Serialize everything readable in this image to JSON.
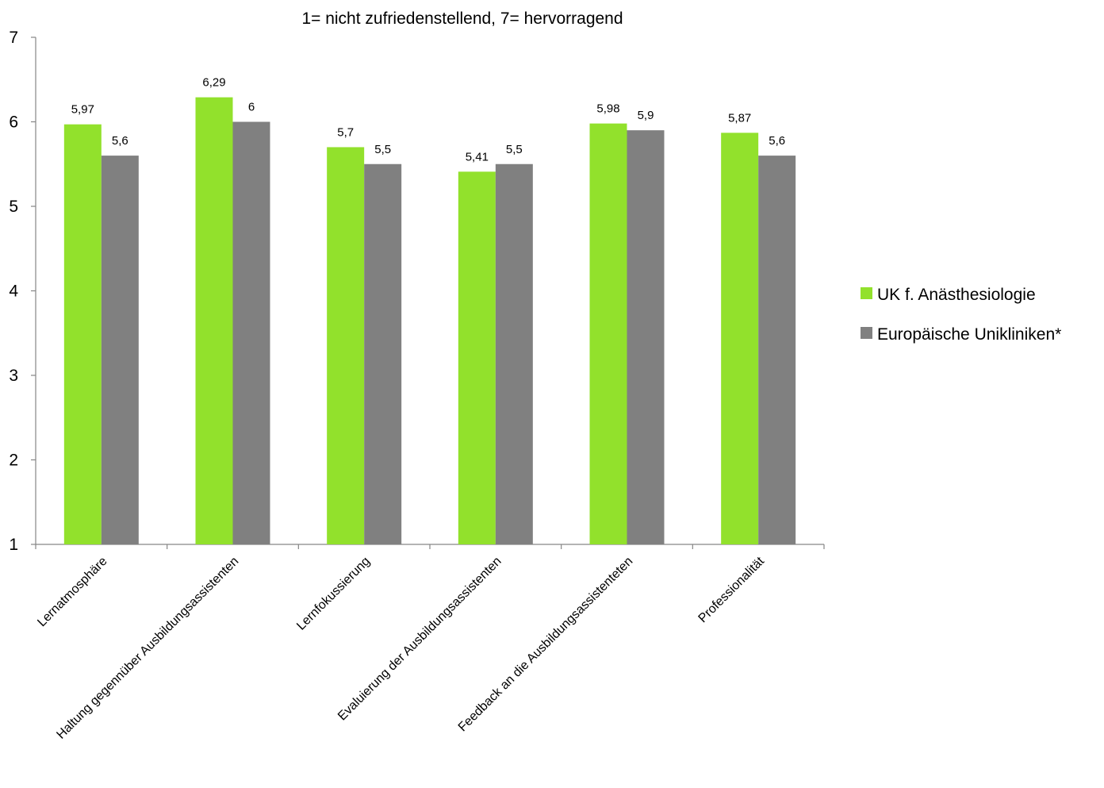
{
  "chart_data": {
    "type": "bar",
    "title": "1= nicht zufriedenstellend, 7= hervorragend",
    "xlabel": "",
    "ylabel": "",
    "ylim": [
      1,
      7
    ],
    "yticks": [
      1,
      2,
      3,
      4,
      5,
      6,
      7
    ],
    "grid": false,
    "legend_position": "right",
    "categories": [
      "Lernatmosphäre",
      "Haltung gegennüber Ausbildungsassistenten",
      "Lernfokussierung",
      "Evaluierung der Ausbildungsassistenten",
      "Feedback an die Ausbildungsassistenteten",
      "Professionalität"
    ],
    "series": [
      {
        "name": "UK f. Anästhesiologie",
        "color": "#92e12c",
        "values": [
          5.97,
          6.29,
          5.7,
          5.41,
          5.98,
          5.87
        ],
        "labels": [
          "5,97",
          "6,29",
          "5,7",
          "5,41",
          "5,98",
          "5,87"
        ]
      },
      {
        "name": "Europäische Unikliniken*",
        "color": "#808080",
        "values": [
          5.6,
          6,
          5.5,
          5.5,
          5.9,
          5.6
        ],
        "labels": [
          "5,6",
          "6",
          "5,5",
          "5,5",
          "5,9",
          "5,6"
        ]
      }
    ]
  }
}
